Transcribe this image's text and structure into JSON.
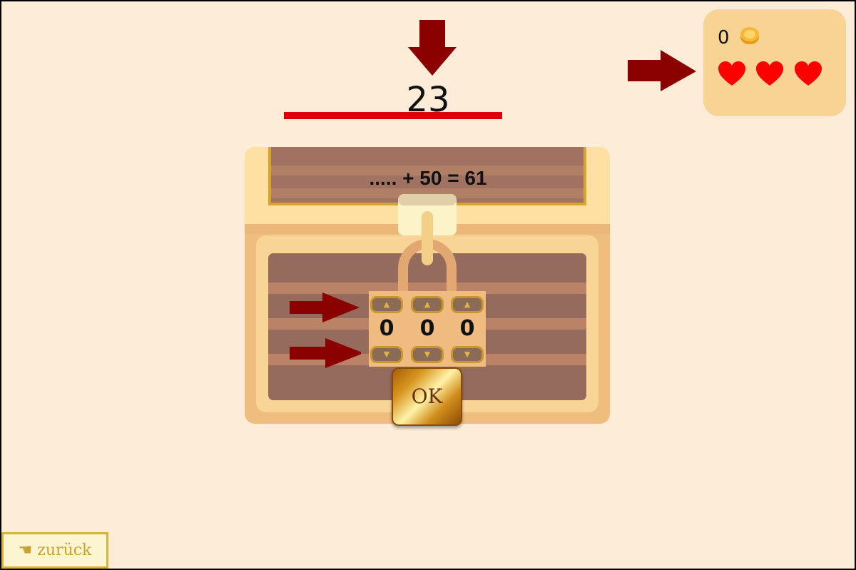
{
  "timer": {
    "value": "23",
    "progress": 1.0
  },
  "score": {
    "coins": "0",
    "lives": 3
  },
  "question": {
    "text": "..... + 50 = 61"
  },
  "lock": {
    "digits": [
      "0",
      "0",
      "0"
    ],
    "up_symbol": "▲",
    "down_symbol": "▼"
  },
  "ok_button": {
    "label": "OK"
  },
  "back_button": {
    "label": "☚ zurück"
  },
  "colors": {
    "background": "#fcecd8",
    "arrow": "#8b0000",
    "timer_bar": "#dd0000",
    "heart": "#ff0000",
    "panel": "#f8d393",
    "gold": "#d8b33a"
  },
  "icons": [
    "arrow-down-icon",
    "arrow-right-icon",
    "coin-icon",
    "heart-icon",
    "padlock-icon"
  ]
}
